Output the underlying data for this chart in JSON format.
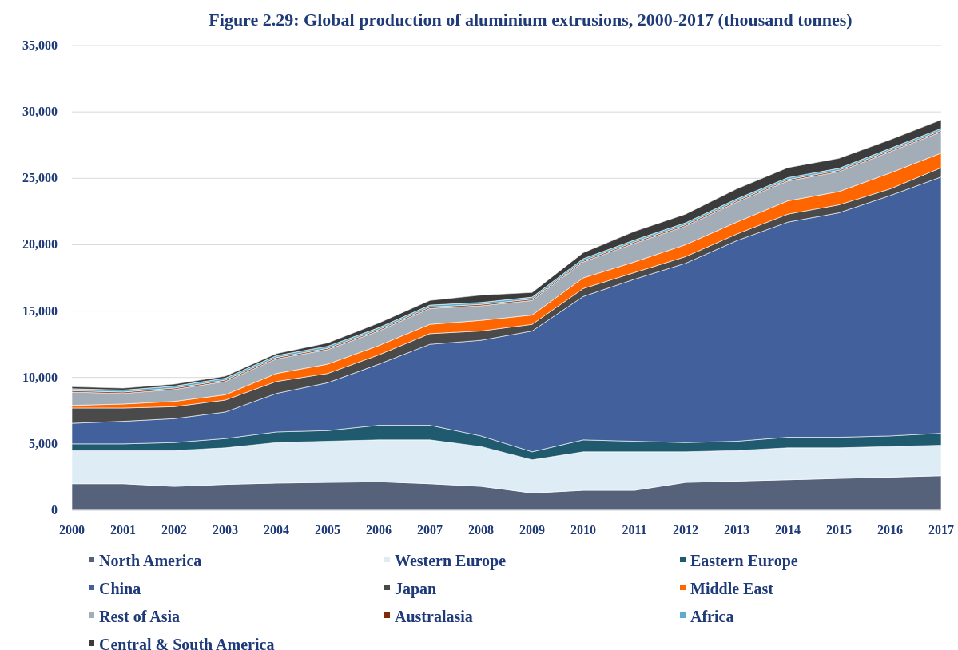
{
  "chart_data": {
    "type": "area",
    "stacked": true,
    "title": "Figure 2.29: Global production of aluminium extrusions, 2000-2017 (thousand tonnes)",
    "categories": [
      "2000",
      "2001",
      "2002",
      "2003",
      "2004",
      "2005",
      "2006",
      "2007",
      "2008",
      "2009",
      "2010",
      "2011",
      "2012",
      "2013",
      "2014",
      "2015",
      "2016",
      "2017"
    ],
    "ylim": [
      0,
      35000
    ],
    "yticks": [
      {
        "value": 0,
        "label": "0"
      },
      {
        "value": 5000,
        "label": "5,000"
      },
      {
        "value": 10000,
        "label": "10,000"
      },
      {
        "value": 15000,
        "label": "15,000"
      },
      {
        "value": 20000,
        "label": "20,000"
      },
      {
        "value": 25000,
        "label": "25,000"
      },
      {
        "value": 30000,
        "label": "30,000"
      },
      {
        "value": 35000,
        "label": "35,000"
      }
    ],
    "grid": "y",
    "legend": "bottom",
    "series": [
      {
        "name": "North America",
        "color": "#56627a",
        "values": [
          2000,
          2000,
          1800,
          1950,
          2050,
          2100,
          2150,
          2000,
          1800,
          1300,
          1500,
          1500,
          2100,
          2200,
          2300,
          2400,
          2500,
          2600
        ]
      },
      {
        "name": "Western Europe",
        "color": "#deedf5",
        "values": [
          2500,
          2500,
          2700,
          2750,
          3050,
          3100,
          3150,
          3300,
          3000,
          2500,
          2900,
          2900,
          2300,
          2300,
          2400,
          2300,
          2300,
          2300
        ]
      },
      {
        "name": "Eastern Europe",
        "color": "#1f5a6e",
        "values": [
          500,
          500,
          600,
          700,
          800,
          800,
          1100,
          1100,
          800,
          600,
          900,
          800,
          700,
          700,
          800,
          800,
          800,
          900
        ]
      },
      {
        "name": "China",
        "color": "#41609c",
        "values": [
          1550,
          1700,
          1800,
          2000,
          2900,
          3600,
          4600,
          6100,
          7200,
          9100,
          10800,
          12200,
          13500,
          15100,
          16200,
          16900,
          18100,
          19300
        ]
      },
      {
        "name": "Japan",
        "color": "#4a4a4a",
        "values": [
          1150,
          1000,
          900,
          900,
          900,
          700,
          700,
          800,
          700,
          500,
          600,
          500,
          500,
          500,
          600,
          600,
          500,
          700
        ]
      },
      {
        "name": "Middle East",
        "color": "#ff6600",
        "values": [
          200,
          300,
          400,
          400,
          600,
          700,
          700,
          700,
          800,
          700,
          800,
          800,
          900,
          900,
          1000,
          1000,
          1200,
          1100
        ]
      },
      {
        "name": "Rest of Asia",
        "color": "#a3adb8",
        "values": [
          1000,
          800,
          900,
          1000,
          1100,
          1100,
          1100,
          1200,
          1100,
          1100,
          1200,
          1400,
          1400,
          1500,
          1500,
          1500,
          1600,
          1600
        ]
      },
      {
        "name": "Australasia",
        "color": "#7f2a0a",
        "values": [
          100,
          100,
          100,
          100,
          100,
          100,
          100,
          100,
          100,
          100,
          100,
          100,
          100,
          100,
          100,
          100,
          100,
          100
        ]
      },
      {
        "name": "Africa",
        "color": "#5aaecd",
        "values": [
          150,
          150,
          150,
          150,
          150,
          150,
          150,
          150,
          150,
          150,
          150,
          150,
          150,
          150,
          150,
          150,
          150,
          150
        ]
      },
      {
        "name": "Central & South America",
        "color": "#3b3b3b",
        "values": [
          150,
          150,
          150,
          150,
          150,
          250,
          350,
          350,
          550,
          350,
          450,
          650,
          650,
          750,
          750,
          750,
          650,
          650
        ]
      }
    ]
  }
}
